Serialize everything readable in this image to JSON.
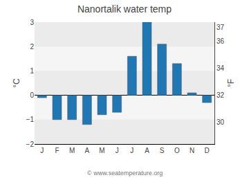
{
  "chart_data": {
    "type": "bar",
    "title": "Nanortalik water temp",
    "categories": [
      "J",
      "F",
      "M",
      "A",
      "M",
      "J",
      "J",
      "A",
      "S",
      "O",
      "N",
      "D"
    ],
    "values": [
      -0.1,
      -1.0,
      -1.0,
      -1.2,
      -0.8,
      -0.7,
      1.6,
      3.0,
      2.1,
      1.3,
      0.1,
      -0.3
    ],
    "ylabel": "°C",
    "y2label": "°F",
    "ylim": [
      -2.0,
      3.0
    ],
    "yticks": [
      -2,
      -1,
      0,
      1,
      2,
      3
    ],
    "y2lim": [
      28.4,
      37.4
    ],
    "y2ticks": [
      30,
      32,
      34,
      36,
      37
    ],
    "footer": "© www.seatemperature.org",
    "grid": true
  }
}
